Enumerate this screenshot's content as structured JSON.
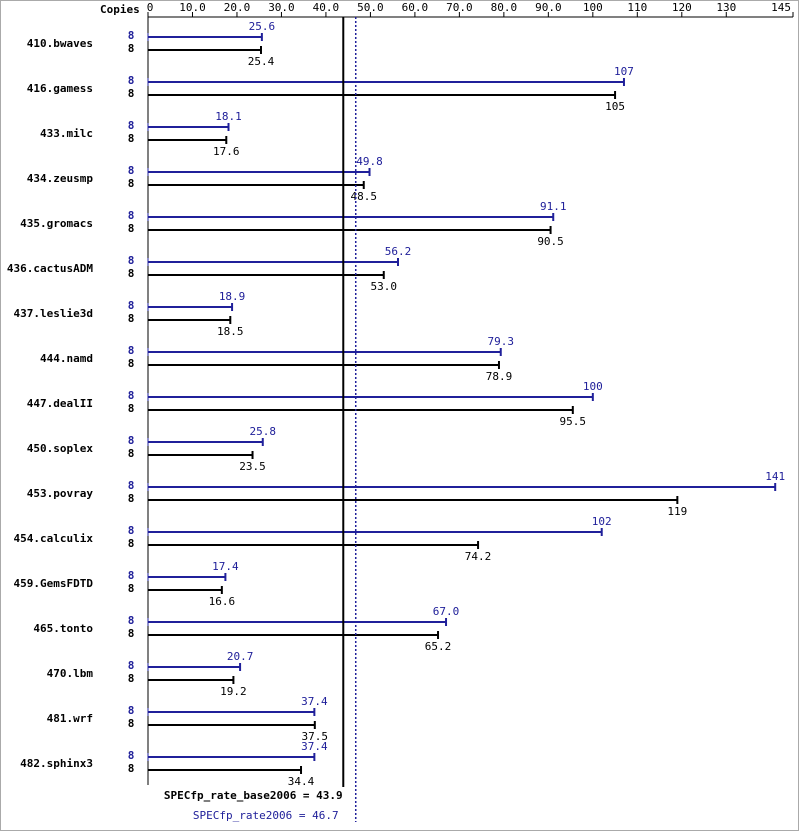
{
  "chart_data": {
    "type": "bar",
    "orientation": "horizontal",
    "copies_label": "Copies",
    "categories": [
      "410.bwaves",
      "416.gamess",
      "433.milc",
      "434.zeusmp",
      "435.gromacs",
      "436.cactusADM",
      "437.leslie3d",
      "444.namd",
      "447.dealII",
      "450.soplex",
      "453.povray",
      "454.calculix",
      "459.GemsFDTD",
      "465.tonto",
      "470.lbm",
      "481.wrf",
      "482.sphinx3"
    ],
    "series": [
      {
        "color": "#20209a",
        "copies": [
          8,
          8,
          8,
          8,
          8,
          8,
          8,
          8,
          8,
          8,
          8,
          8,
          8,
          8,
          8,
          8,
          8
        ],
        "values": [
          25.6,
          107,
          18.1,
          49.8,
          91.1,
          56.2,
          18.9,
          79.3,
          100,
          25.8,
          141,
          102,
          17.4,
          67.0,
          20.7,
          37.4,
          37.4
        ],
        "value_labels": [
          "25.6",
          "107",
          "18.1",
          "49.8",
          "91.1",
          "56.2",
          "18.9",
          "79.3",
          "100",
          "25.8",
          "141",
          "102",
          "17.4",
          "67.0",
          "20.7",
          "37.4",
          "37.4"
        ]
      },
      {
        "color": "#000000",
        "copies": [
          8,
          8,
          8,
          8,
          8,
          8,
          8,
          8,
          8,
          8,
          8,
          8,
          8,
          8,
          8,
          8,
          8
        ],
        "values": [
          25.4,
          105,
          17.6,
          48.5,
          90.5,
          53.0,
          18.5,
          78.9,
          95.5,
          23.5,
          119,
          74.2,
          16.6,
          65.2,
          19.2,
          37.5,
          34.4
        ],
        "value_labels": [
          "25.4",
          "105",
          "17.6",
          "48.5",
          "90.5",
          "53.0",
          "18.5",
          "78.9",
          "95.5",
          "23.5",
          "119",
          "74.2",
          "16.6",
          "65.2",
          "19.2",
          "37.5",
          "34.4"
        ]
      }
    ],
    "xlim": [
      0,
      145
    ],
    "xticks": [
      0,
      {
        "value": 10,
        "label": "10.0"
      },
      {
        "value": 20,
        "label": "20.0"
      },
      {
        "value": 30,
        "label": "30.0"
      },
      {
        "value": 40,
        "label": "40.0"
      },
      {
        "value": 50,
        "label": "50.0"
      },
      {
        "value": 60,
        "label": "60.0"
      },
      {
        "value": 70,
        "label": "70.0"
      },
      {
        "value": 80,
        "label": "80.0"
      },
      {
        "value": 90,
        "label": "90.0"
      },
      100,
      110,
      120,
      130,
      145
    ],
    "annotations": [
      {
        "label": "SPECfp_rate_base2006 = 43.9",
        "value": 43.9,
        "color": "#000000"
      },
      {
        "label": "SPECfp_rate2006 = 46.7",
        "value": 46.7,
        "color": "#20209a"
      }
    ]
  }
}
